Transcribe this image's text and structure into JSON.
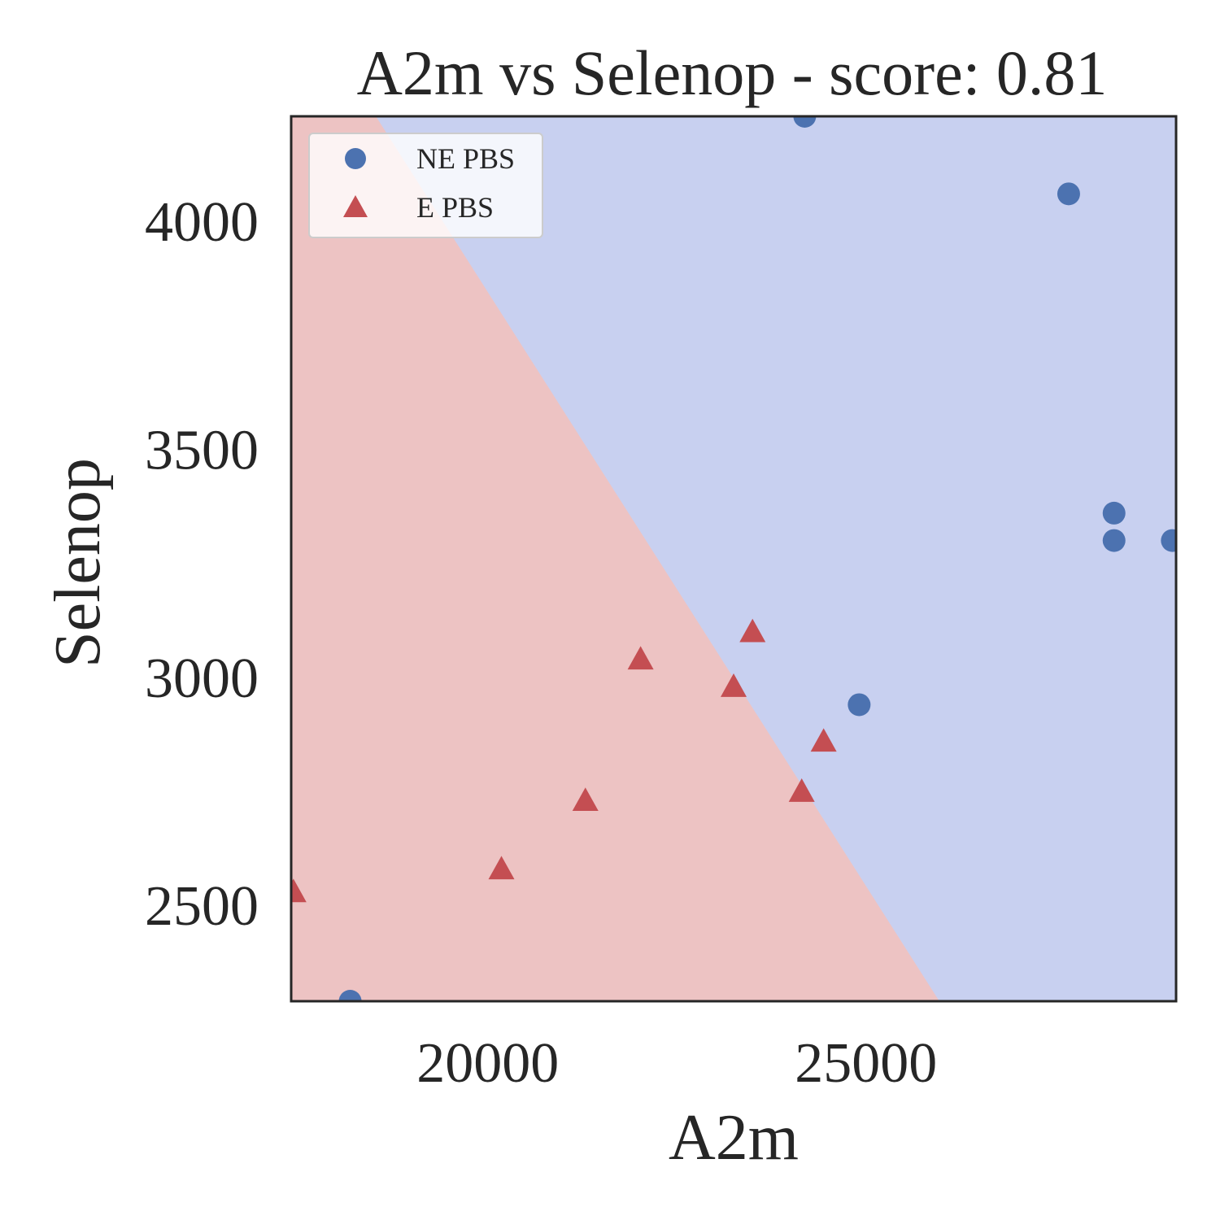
{
  "chart_data": {
    "type": "scatter",
    "title": "A2m vs Selenop - score: 0.81",
    "xlabel": "A2m",
    "ylabel": "Selenop",
    "xlim": [
      17400,
      29100
    ],
    "ylim": [
      2290,
      4230
    ],
    "xticks": [
      20000,
      25000
    ],
    "xtick_labels": [
      "20000",
      "25000"
    ],
    "yticks": [
      2500,
      3000,
      3500,
      4000
    ],
    "ytick_labels": [
      "2500",
      "3000",
      "3500",
      "4000"
    ],
    "grid": false,
    "legend_position": "top-left",
    "decision_boundary": {
      "points": [
        [
          18520,
          4230
        ],
        [
          25970,
          2290
        ]
      ],
      "region_colors": {
        "E PBS": "#edc3c3",
        "NE PBS": "#c8d0f0"
      }
    },
    "series": [
      {
        "name": "NE PBS",
        "marker": "circle",
        "color": "#4c72b0",
        "points": [
          [
            24190,
            4230
          ],
          [
            27680,
            4060
          ],
          [
            28280,
            3360
          ],
          [
            28280,
            3300
          ],
          [
            29050,
            3300
          ],
          [
            24910,
            2940
          ],
          [
            18180,
            2290
          ]
        ]
      },
      {
        "name": "E PBS",
        "marker": "triangle",
        "color": "#c44e52",
        "points": [
          [
            17430,
            2530
          ],
          [
            20180,
            2580
          ],
          [
            21290,
            2730
          ],
          [
            22020,
            3040
          ],
          [
            23250,
            2980
          ],
          [
            23500,
            3100
          ],
          [
            24150,
            2750
          ],
          [
            24440,
            2860
          ]
        ]
      }
    ]
  }
}
